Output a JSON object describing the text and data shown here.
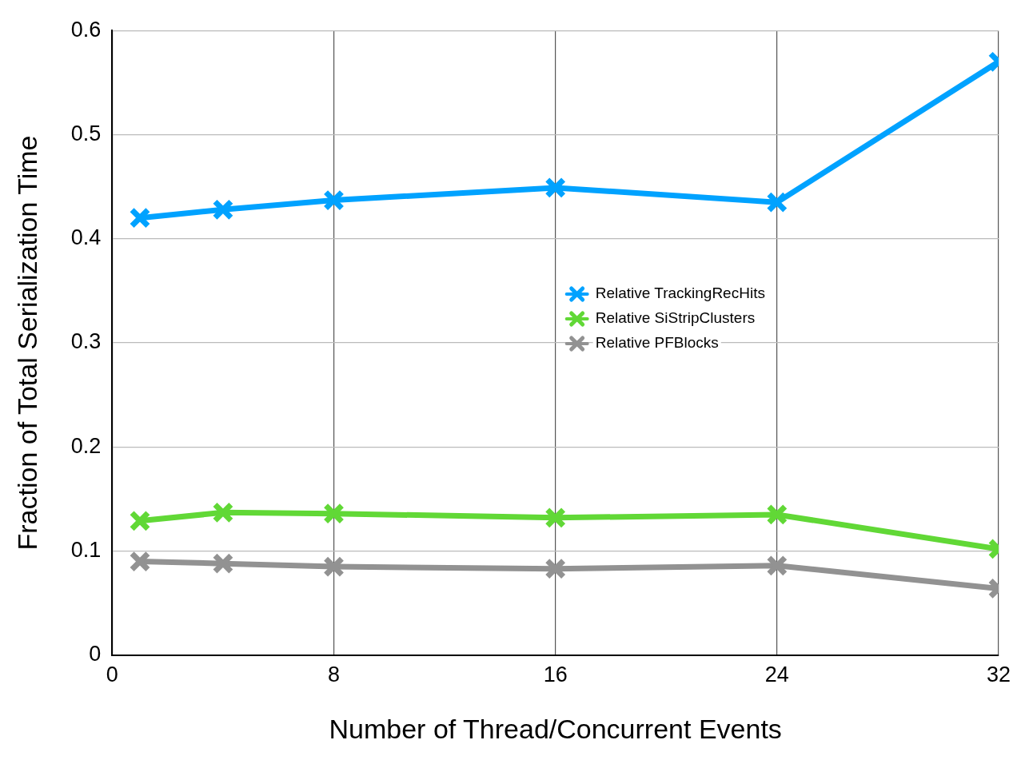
{
  "chart_data": {
    "type": "line",
    "xlabel": "Number of Thread/Concurrent Events",
    "ylabel": "Fraction of Total Serialization Time",
    "x": [
      1,
      4,
      8,
      16,
      24,
      32
    ],
    "series": [
      {
        "name": "Relative TrackingRecHits",
        "color": "#00a2ff",
        "marker": "cross",
        "values": [
          0.42,
          0.428,
          0.437,
          0.449,
          0.435,
          0.57
        ]
      },
      {
        "name": "Relative SiStripClusters",
        "color": "#61d836",
        "marker": "cross",
        "values": [
          0.129,
          0.137,
          0.136,
          0.132,
          0.135,
          0.102
        ]
      },
      {
        "name": "Relative PFBlocks",
        "color": "#929292",
        "marker": "cross",
        "values": [
          0.09,
          0.088,
          0.085,
          0.083,
          0.086,
          0.064
        ]
      }
    ],
    "xlim": [
      0,
      32
    ],
    "xticks": [
      0,
      8,
      16,
      24,
      32
    ],
    "ylim": [
      0,
      0.6
    ],
    "yticks": [
      0,
      0.1,
      0.2,
      0.3,
      0.4,
      0.5,
      0.6
    ],
    "grid": true,
    "legend": "right",
    "line_style": "solid"
  }
}
